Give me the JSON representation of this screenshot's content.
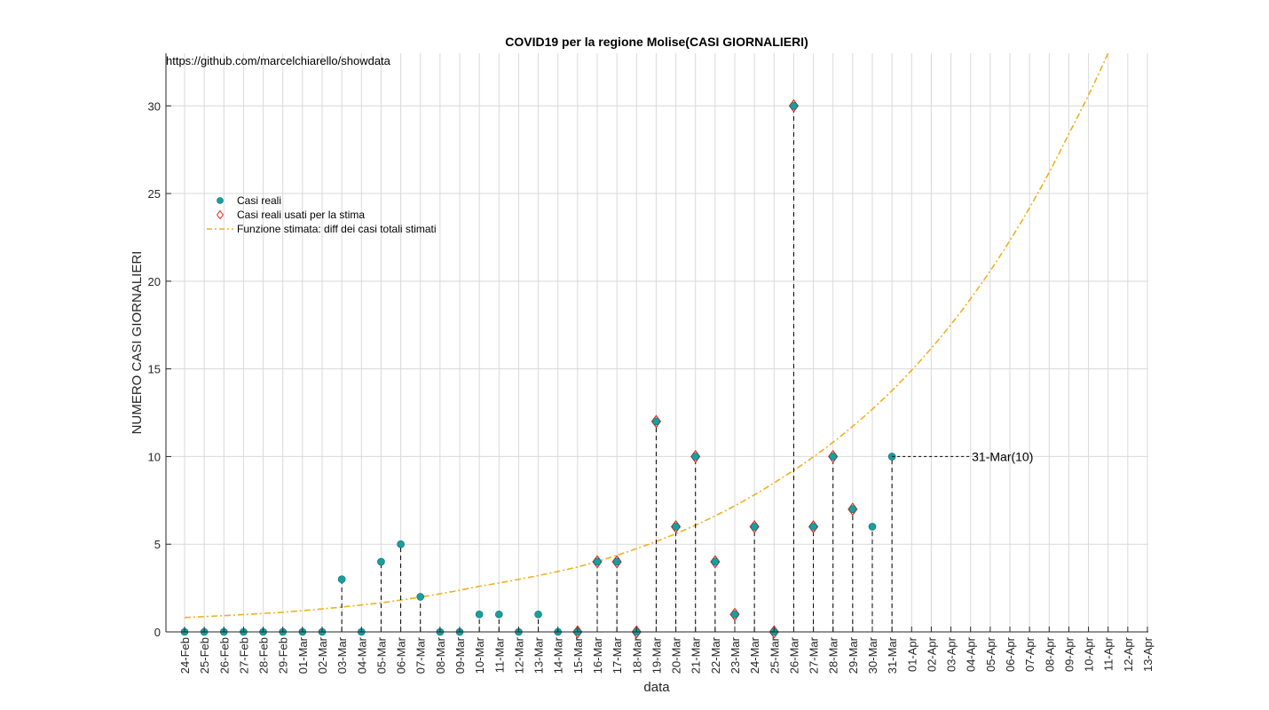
{
  "chart_data": {
    "type": "scatter",
    "title": "COVID19 per la regione Molise(CASI GIORNALIERI)",
    "subtitle_url": "https://github.com/marcelchiarello/showdata",
    "xlabel": "data",
    "ylabel": "NUMERO CASI GIORNALIERI",
    "ylim": [
      0,
      33
    ],
    "yticks": [
      0,
      5,
      10,
      15,
      20,
      25,
      30
    ],
    "grid": true,
    "legend_position": "upper-left",
    "categories": [
      "24-Feb",
      "25-Feb",
      "26-Feb",
      "27-Feb",
      "28-Feb",
      "29-Feb",
      "01-Mar",
      "02-Mar",
      "03-Mar",
      "04-Mar",
      "05-Mar",
      "06-Mar",
      "07-Mar",
      "08-Mar",
      "09-Mar",
      "10-Mar",
      "11-Mar",
      "12-Mar",
      "13-Mar",
      "14-Mar",
      "15-Mar",
      "16-Mar",
      "17-Mar",
      "18-Mar",
      "19-Mar",
      "20-Mar",
      "21-Mar",
      "22-Mar",
      "23-Mar",
      "24-Mar",
      "25-Mar",
      "26-Mar",
      "27-Mar",
      "28-Mar",
      "29-Mar",
      "30-Mar",
      "31-Mar",
      "01-Apr",
      "02-Apr",
      "03-Apr",
      "04-Apr",
      "05-Apr",
      "06-Apr",
      "07-Apr",
      "08-Apr",
      "09-Apr",
      "10-Apr",
      "11-Apr",
      "12-Apr",
      "13-Apr"
    ],
    "series": [
      {
        "name": "Casi reali",
        "marker": "circle",
        "color": "#1a9e9e",
        "x": [
          "24-Feb",
          "25-Feb",
          "26-Feb",
          "27-Feb",
          "28-Feb",
          "29-Feb",
          "01-Mar",
          "02-Mar",
          "03-Mar",
          "04-Mar",
          "05-Mar",
          "06-Mar",
          "07-Mar",
          "08-Mar",
          "09-Mar",
          "10-Mar",
          "11-Mar",
          "12-Mar",
          "13-Mar",
          "14-Mar",
          "15-Mar",
          "16-Mar",
          "17-Mar",
          "18-Mar",
          "19-Mar",
          "20-Mar",
          "21-Mar",
          "22-Mar",
          "23-Mar",
          "24-Mar",
          "25-Mar",
          "26-Mar",
          "27-Mar",
          "28-Mar",
          "29-Mar",
          "30-Mar",
          "31-Mar"
        ],
        "values": [
          0,
          0,
          0,
          0,
          0,
          0,
          0,
          0,
          3,
          0,
          4,
          5,
          2,
          0,
          0,
          1,
          1,
          0,
          1,
          0,
          0,
          4,
          4,
          0,
          12,
          6,
          10,
          4,
          1,
          6,
          0,
          30,
          6,
          10,
          7,
          6,
          10
        ]
      },
      {
        "name": "Casi reali usati per la stima",
        "marker": "diamond",
        "color": "#e8261c",
        "x": [
          "15-Mar",
          "16-Mar",
          "17-Mar",
          "18-Mar",
          "19-Mar",
          "20-Mar",
          "21-Mar",
          "22-Mar",
          "23-Mar",
          "24-Mar",
          "25-Mar",
          "26-Mar",
          "27-Mar",
          "28-Mar",
          "29-Mar"
        ],
        "values": [
          0,
          4,
          4,
          0,
          12,
          6,
          10,
          4,
          1,
          6,
          0,
          30,
          6,
          10,
          7
        ]
      },
      {
        "name": "Funzione stimata: diff dei casi totali stimati",
        "line_style": "dash-dot",
        "color": "#edb120",
        "x": [
          "24-Feb",
          "29-Feb",
          "05-Mar",
          "10-Mar",
          "15-Mar",
          "20-Mar",
          "25-Mar",
          "30-Mar",
          "04-Apr",
          "09-Apr",
          "11-Apr"
        ],
        "values": [
          0.82,
          1.12,
          1.66,
          2.6,
          3.7,
          5.6,
          8.5,
          12.7,
          19.0,
          28.4,
          33.0
        ]
      }
    ],
    "annotations": [
      {
        "x": "31-Mar",
        "y": 10,
        "text": "31-Mar(10)"
      }
    ],
    "colors": {
      "stem": "#000000",
      "grid": "#d9d9d9",
      "axis": "#262626"
    }
  }
}
